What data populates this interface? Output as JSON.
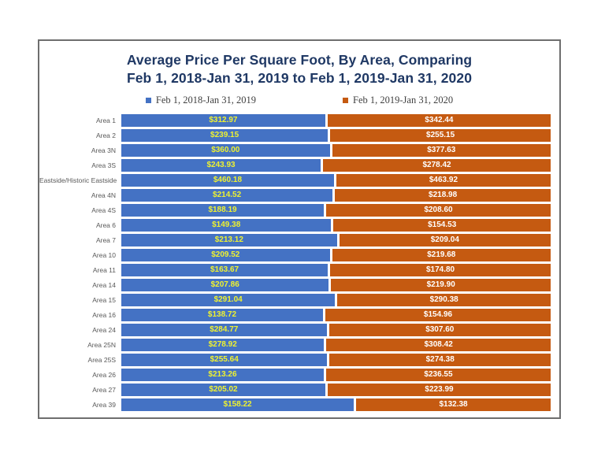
{
  "page": {
    "background_color": "#FFFFFF",
    "frame_border_color": "#6E6E6E"
  },
  "chart": {
    "title_line1": "Average Price Per Square Foot, By Area, Comparing",
    "title_line2": "Feb 1, 2018-Jan 31, 2019 to Feb 1, 2019-Jan 31, 2020",
    "title_color": "#1F3864",
    "legend": [
      {
        "label": "Feb 1, 2018-Jan 31, 2019",
        "color": "#4472C4"
      },
      {
        "label": "Feb 1, 2019-Jan 31, 2020",
        "color": "#C55A11"
      }
    ]
  },
  "chart_data": {
    "type": "bar",
    "orientation": "horizontal",
    "stacking": "100%",
    "legend_position": "top",
    "grid": false,
    "title": "Average Price Per Square Foot, By Area, Comparing Feb 1, 2018-Jan 31, 2019 to Feb 1, 2019-Jan 31, 2020",
    "categories": [
      "Area 1",
      "Area 2",
      "Area 3N",
      "Area 3S",
      "Eastside/Historic Eastside",
      "Area 4N",
      "Area 4S",
      "Area 6",
      "Area 7",
      "Area 10",
      "Area 11",
      "Area 14",
      "Area 15",
      "Area 16",
      "Area 24",
      "Area 25N",
      "Area 25S",
      "Area 26",
      "Area 27",
      "Area 39"
    ],
    "series": [
      {
        "name": "Feb 1, 2018-Jan 31, 2019",
        "color": "#4472C4",
        "value_text_color": "#EFF230",
        "values": [
          312.97,
          239.15,
          360.0,
          243.93,
          460.18,
          214.52,
          188.19,
          149.38,
          213.12,
          209.52,
          163.67,
          207.86,
          291.04,
          138.72,
          284.77,
          278.92,
          255.64,
          213.26,
          205.02,
          158.22
        ],
        "labels": [
          "$312.97",
          "$239.15",
          "$360.00",
          "$243.93",
          "$460.18",
          "$214.52",
          "$188.19",
          "$149.38",
          "$213.12",
          "$209.52",
          "$163.67",
          "$207.86",
          "$291.04",
          "$138.72",
          "$284.77",
          "$278.92",
          "$255.64",
          "$213.26",
          "$205.02",
          "$158.22"
        ]
      },
      {
        "name": "Feb 1, 2019-Jan 31, 2020",
        "color": "#C55A11",
        "value_text_color": "#FFFFFF",
        "values": [
          342.44,
          255.15,
          377.63,
          278.42,
          463.92,
          218.98,
          208.6,
          154.53,
          209.04,
          219.68,
          174.8,
          219.9,
          290.38,
          154.96,
          307.6,
          308.42,
          274.38,
          236.55,
          223.99,
          132.38
        ],
        "labels": [
          "$342.44",
          "$255.15",
          "$377.63",
          "$278.42",
          "$463.92",
          "$218.98",
          "$208.60",
          "$154.53",
          "$209.04",
          "$219.68",
          "$174.80",
          "$219.90",
          "$290.38",
          "$154.96",
          "$307.60",
          "$308.42",
          "$274.38",
          "$236.55",
          "$223.99",
          "$132.38"
        ]
      }
    ]
  }
}
